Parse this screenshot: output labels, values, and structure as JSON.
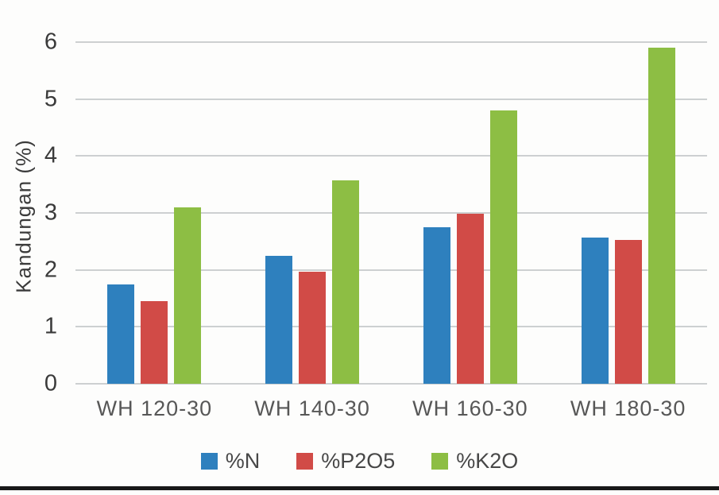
{
  "chart_data": {
    "type": "bar",
    "title": "",
    "xlabel": "",
    "ylabel": "Kandungan (%)",
    "ylim": [
      0,
      6
    ],
    "yticks": [
      0,
      1,
      2,
      3,
      4,
      5,
      6
    ],
    "grid": true,
    "legend_position": "bottom",
    "categories": [
      "WH 120-30",
      "WH 140-30",
      "WH 160-30",
      "WH 180-30"
    ],
    "series": [
      {
        "name": "%N",
        "color": "#2E80BE",
        "values": [
          1.75,
          2.25,
          2.75,
          2.57
        ]
      },
      {
        "name": "%P2O5",
        "color": "#D14B47",
        "values": [
          1.45,
          1.97,
          2.98,
          2.53
        ]
      },
      {
        "name": "%K2O",
        "color": "#8DBE44",
        "values": [
          3.1,
          3.57,
          4.8,
          5.9
        ]
      }
    ]
  },
  "colors": {
    "gridline": "#cdd0d1",
    "axis_text": "#3a3a3a",
    "xlabel_text": "#575757",
    "bottom_rule": "#191919",
    "background": "#fdfdfc"
  }
}
